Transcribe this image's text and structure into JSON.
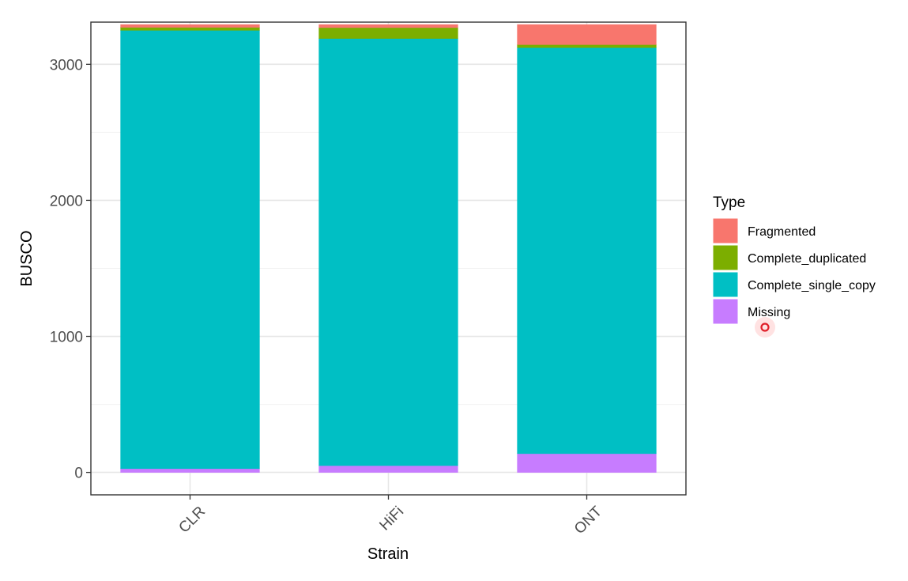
{
  "chart_data": {
    "type": "bar",
    "stacked": true,
    "categories": [
      "CLR",
      "HiFi",
      "ONT"
    ],
    "xlabel": "Strain",
    "ylabel": "BUSCO",
    "ylim": [
      -165,
      3310
    ],
    "yticks": [
      0,
      1000,
      2000,
      3000
    ],
    "ytick_labels": [
      "0",
      "1000",
      "2000",
      "3000"
    ],
    "grid": true,
    "x_tick_rotation": -45,
    "legend": {
      "title": "Type",
      "position": "right"
    },
    "series": [
      {
        "name": "Missing",
        "color": "#C77CFF",
        "values": [
          28,
          50,
          138
        ]
      },
      {
        "name": "Complete_single_copy",
        "color": "#00BFC4",
        "values": [
          3222,
          3140,
          2985
        ]
      },
      {
        "name": "Complete_duplicated",
        "color": "#7CAE00",
        "values": [
          22,
          80,
          22
        ]
      },
      {
        "name": "Fragmented",
        "color": "#F8766D",
        "values": [
          20,
          22,
          147
        ]
      }
    ],
    "legend_order": [
      "Fragmented",
      "Complete_duplicated",
      "Complete_single_copy",
      "Missing"
    ]
  },
  "cursor": {
    "icon": "cursor-click-indicator-icon"
  }
}
